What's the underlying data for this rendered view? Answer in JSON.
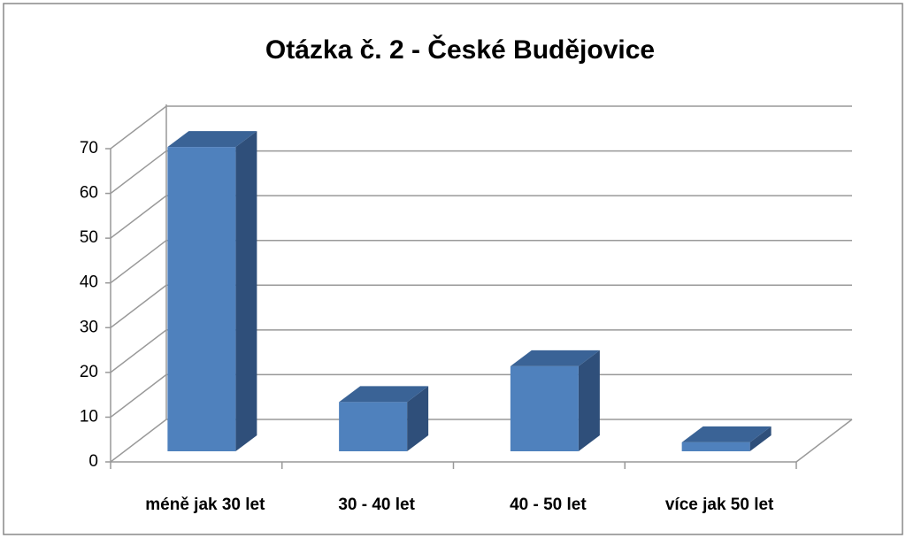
{
  "chart_data": {
    "type": "bar3d",
    "title": "Otázka č. 2 - České Budějovice",
    "categories": [
      "méně jak 30 let",
      "30 - 40 let",
      "40 - 50 let",
      "více jak 50 let"
    ],
    "values": [
      68,
      11,
      19,
      2
    ],
    "color": "#4f81bd",
    "ylim": [
      0,
      70
    ],
    "yticks": [
      0,
      10,
      20,
      30,
      40,
      50,
      60,
      70
    ],
    "grid": true
  }
}
